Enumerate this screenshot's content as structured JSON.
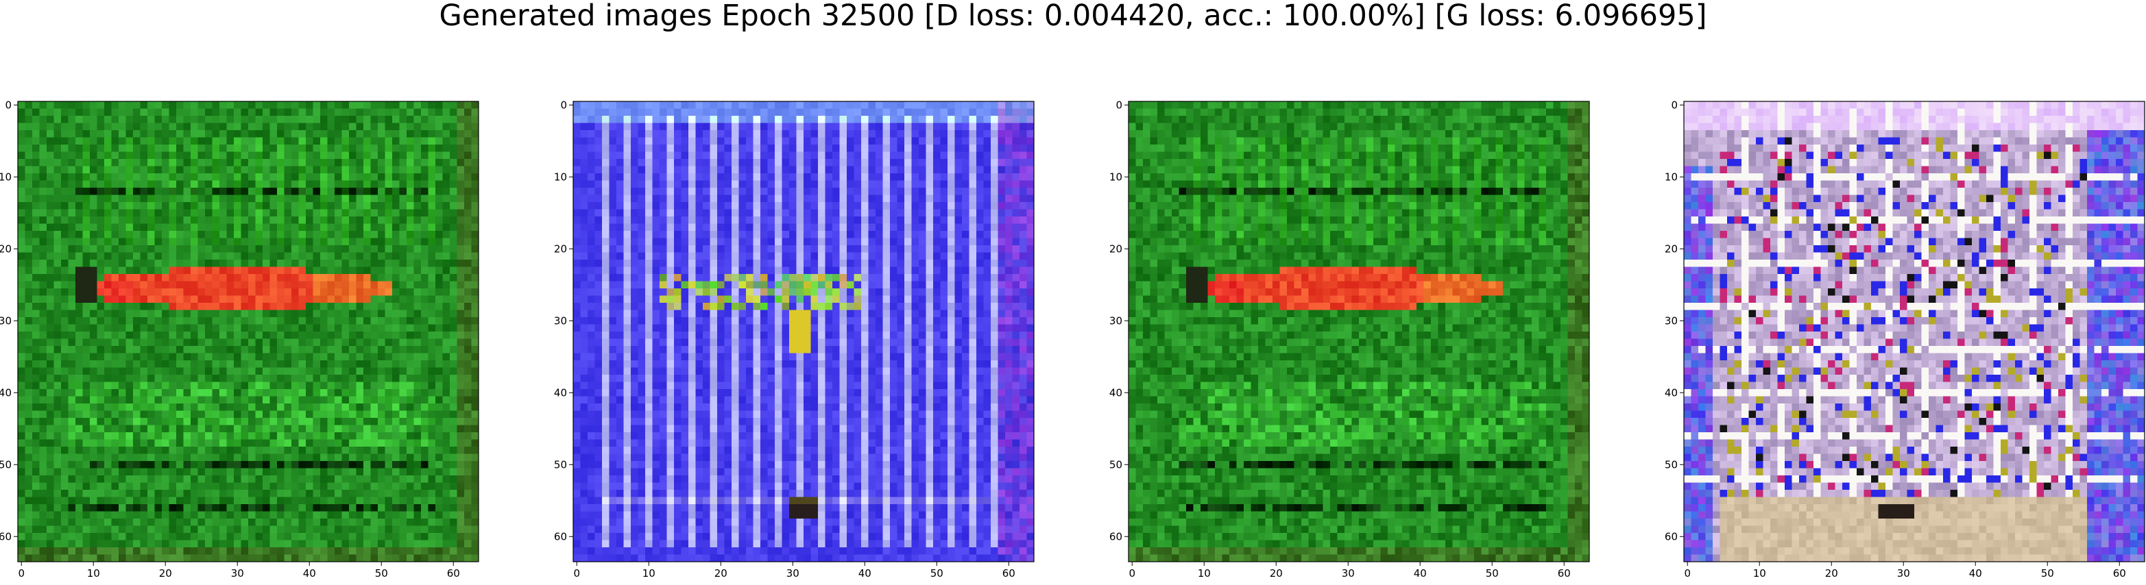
{
  "figure": {
    "title": "Generated images Epoch 32500 [D loss: 0.004420, acc.: 100.00%] [G loss: 6.096695]"
  },
  "axes": {
    "x_ticks": [
      "0",
      "10",
      "20",
      "30",
      "40",
      "50",
      "60"
    ],
    "y_ticks": [
      "0",
      "10",
      "20",
      "30",
      "40",
      "50",
      "60"
    ],
    "xlim": [
      -0.5,
      63.5
    ],
    "ylim": [
      -0.5,
      63.5
    ]
  },
  "panels": [
    {
      "name": "generated-image-1",
      "description_colors": {
        "background": "#2a8a2a",
        "accent": "#e8432a"
      },
      "style": "green"
    },
    {
      "name": "generated-image-2",
      "description_colors": {
        "background": "#3a35e8",
        "accent": "#c8d8ff"
      },
      "style": "blue"
    },
    {
      "name": "generated-image-3",
      "description_colors": {
        "background": "#2a8a2a",
        "accent": "#e8432a"
      },
      "style": "green"
    },
    {
      "name": "generated-image-4",
      "description_colors": {
        "background": "#3a35e8",
        "accent": "#f0e6ff"
      },
      "style": "pastel"
    }
  ]
}
